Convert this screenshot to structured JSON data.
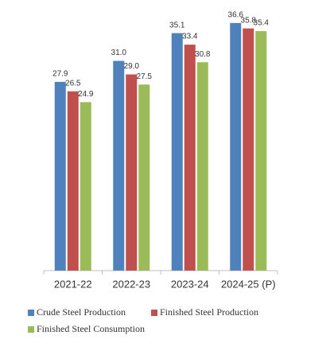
{
  "chart_data": {
    "type": "bar",
    "categories": [
      "2021-22",
      "2022-23",
      "2023-24",
      "2024-25 (P)"
    ],
    "series": [
      {
        "name": "Crude Steel Production",
        "color": "#4f81bd",
        "values": [
          27.9,
          31,
          35.1,
          36.6
        ],
        "value_labels": [
          "27.9",
          "31.0",
          "35.1",
          "36.6"
        ]
      },
      {
        "name": "Finished Steel Production",
        "color": "#c0504d",
        "values": [
          26.5,
          29,
          33.4,
          35.8
        ],
        "value_labels": [
          "26.5",
          "29.0",
          "33.4",
          "35.8"
        ]
      },
      {
        "name": "Finished Steel Consumption",
        "color": "#9bbb59",
        "values": [
          24.9,
          27.5,
          30.8,
          35.4
        ]
      }
    ],
    "ylim": [
      0,
      40
    ]
  }
}
